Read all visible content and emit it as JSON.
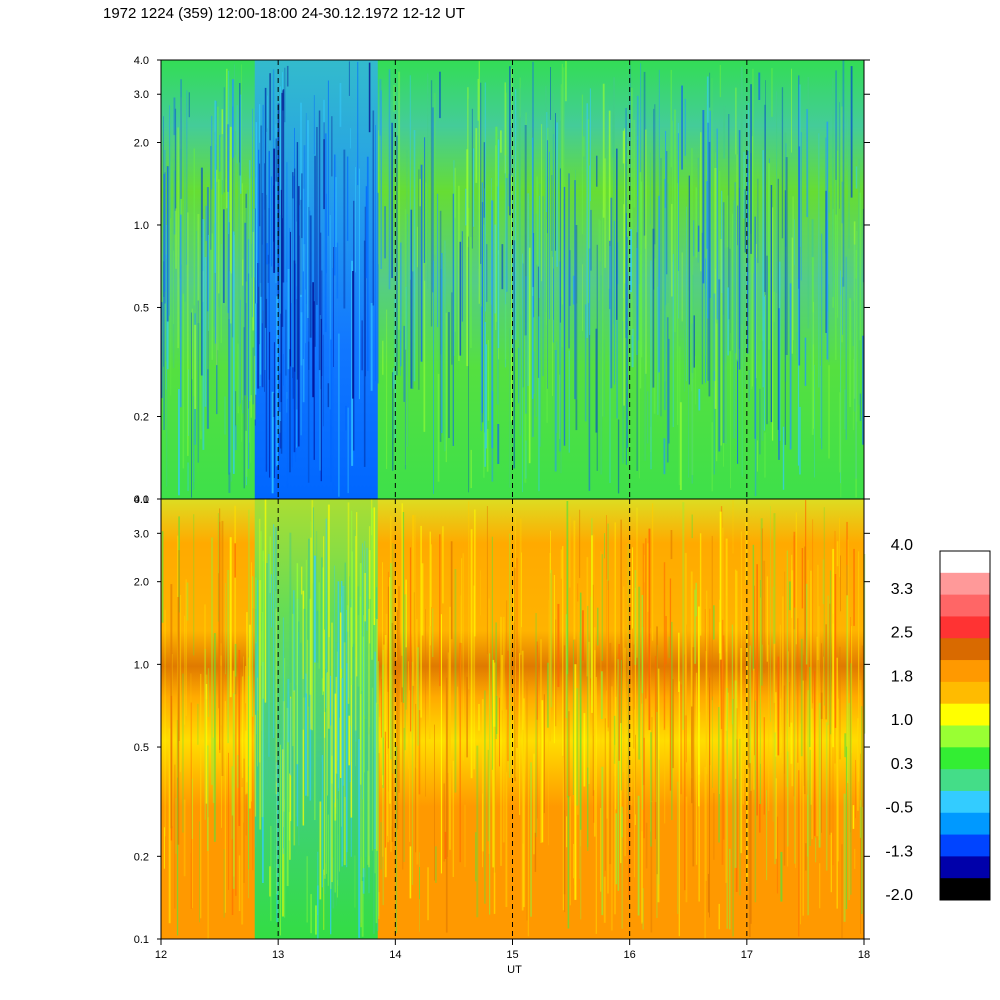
{
  "title": "1972 1224 (359) 12:00-18:00 24-30.12.1972  12-12 UT",
  "chart_data": {
    "type": "heatmap",
    "xlabel": "UT",
    "xlim": [
      12,
      18
    ],
    "x_ticks": [
      "12",
      "13",
      "14",
      "15",
      "16",
      "17",
      "18"
    ],
    "vertical_markers": [
      13,
      14,
      15,
      16,
      17
    ],
    "panels": [
      {
        "name": "upper",
        "ylim": [
          0.1,
          4.0
        ],
        "yscale": "log",
        "y_ticks": [
          "0.1",
          "0.2",
          "0.5",
          "1.0",
          "2.0",
          "3.0",
          "4.0"
        ],
        "dominant_levels": "green to light-blue; deep blue patch between 12.8 and 13.85 UT"
      },
      {
        "name": "lower",
        "ylim": [
          0.1,
          4.0
        ],
        "yscale": "log",
        "y_ticks": [
          "0.1",
          "0.2",
          "0.5",
          "1.0",
          "2.0",
          "3.0",
          "4.0"
        ],
        "dominant_levels": "orange/yellow with dark-orange band near 0.8-0.95; green/cyan patch between 12.8 and 13.85 UT"
      }
    ],
    "colorbar": {
      "labels": [
        "4.0",
        "3.3",
        "2.5",
        "1.8",
        "1.0",
        "0.3",
        "-0.5",
        "-1.3",
        "-2.0"
      ],
      "colors": [
        "#ffffff",
        "#ff9999",
        "#ff6666",
        "#ff3333",
        "#d96a00",
        "#ff9900",
        "#ffbb00",
        "#ffff00",
        "#99ff33",
        "#33ee33",
        "#44dd88",
        "#33ccff",
        "#0099ff",
        "#0044ff",
        "#0000aa",
        "#000000"
      ]
    }
  }
}
